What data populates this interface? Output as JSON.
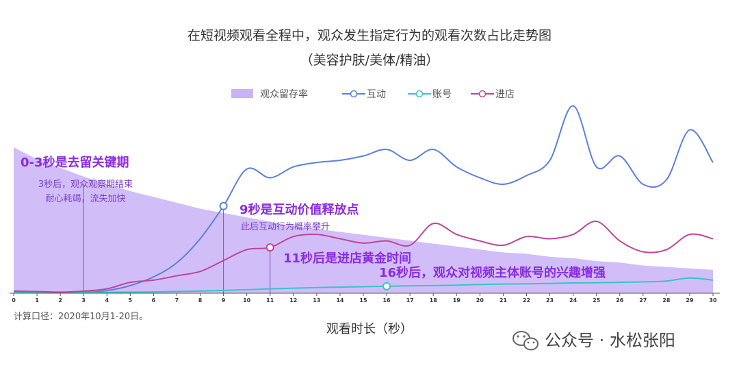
{
  "chart_data": {
    "type": "line",
    "title": "在短视频观看全程中，观众发生指定行为的观看次数占比走势图",
    "subtitle": "（美容护肤/美体/精油）",
    "xlabel": "观看时长（秒）",
    "x": [
      0,
      1,
      2,
      3,
      4,
      5,
      6,
      7,
      8,
      9,
      10,
      11,
      12,
      13,
      14,
      15,
      16,
      17,
      18,
      19,
      20,
      21,
      22,
      23,
      24,
      25,
      26,
      27,
      28,
      29,
      30
    ],
    "series": [
      {
        "name": "观众留存率",
        "kind": "area",
        "color": "#c9b3f7",
        "values": [
          100,
          92,
          86,
          80,
          75,
          70,
          66,
          62,
          58,
          55,
          52,
          49,
          46,
          44,
          42,
          40,
          38,
          36,
          34,
          32,
          30,
          28,
          27,
          25,
          24,
          22,
          21,
          19,
          18,
          17,
          16
        ]
      },
      {
        "name": "互动",
        "kind": "line",
        "color": "#5b7fdd",
        "values": [
          0.5,
          0.4,
          0.3,
          0.4,
          1.2,
          3.5,
          7.5,
          14,
          25,
          40,
          57,
          53,
          58,
          60,
          61,
          63,
          66,
          61,
          66,
          58,
          53,
          50,
          54,
          61,
          86,
          58,
          63,
          50,
          52,
          75,
          60
        ]
      },
      {
        "name": "账号",
        "kind": "line",
        "color": "#38c4c4",
        "values": [
          0.3,
          0.3,
          0.2,
          0.3,
          0.4,
          0.5,
          0.6,
          0.8,
          1.0,
          1.3,
          1.6,
          2.0,
          2.3,
          2.6,
          2.8,
          3.0,
          3.2,
          3.4,
          3.5,
          3.7,
          4.0,
          4.2,
          4.3,
          4.5,
          4.7,
          4.8,
          5.0,
          5.2,
          5.6,
          7.0,
          6.0
        ]
      },
      {
        "name": "进店",
        "kind": "line",
        "color": "#c0449a",
        "values": [
          1,
          0.8,
          0.5,
          1,
          2,
          5,
          6,
          8,
          10,
          15,
          20,
          21,
          26,
          27,
          25,
          23,
          24,
          22,
          32,
          27,
          24,
          22,
          26,
          25,
          27,
          33,
          24,
          19,
          20,
          27,
          25
        ]
      }
    ],
    "highlight_points": [
      {
        "series": "互动",
        "x": 9
      },
      {
        "series": "进店",
        "x": 11
      },
      {
        "series": "账号",
        "x": 16
      }
    ],
    "vlines": [
      3,
      9,
      11
    ],
    "legend_position": "top",
    "grid": false
  },
  "annotations": {
    "a1_title": "0-3秒是去留关键期",
    "a1_line1": "3秒后，观众观察期结束",
    "a1_line2": "耐心耗竭，流失加快",
    "a2_title": "9秒是互动价值释放点",
    "a2_line1": "此后互动行为概率攀升",
    "a3_title": "11秒后是进店黄金时间",
    "a4_title": "16秒后，观众对视频主体账号的兴趣增强"
  },
  "footnote": "计算口径：2020年10月1-20日。",
  "watermark": "公众号 · 水松张阳",
  "colors": {
    "retention_fill": "#c9b3f7",
    "annotation_purple": "#8a2be2"
  }
}
